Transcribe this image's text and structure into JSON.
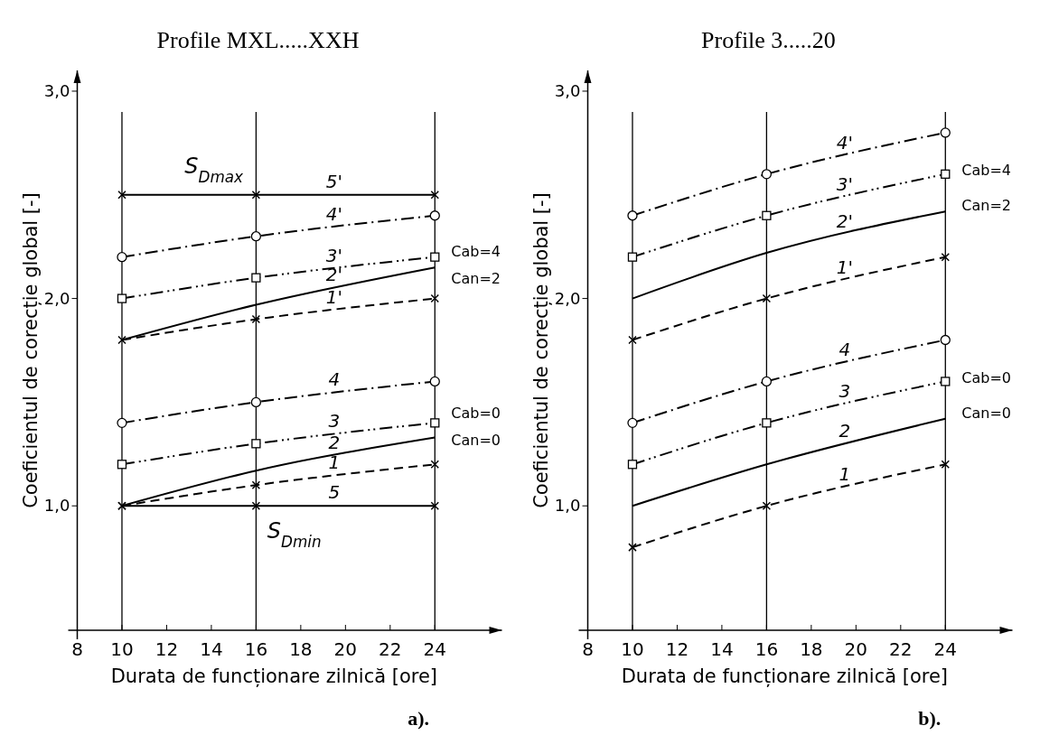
{
  "chart_data": [
    {
      "type": "line",
      "title": "Profile MXL.....XXH",
      "xlabel": "Durata de funcționare zilnică [ore]",
      "ylabel": "Coeficientul de corecție global [-]",
      "xlim": [
        8,
        27
      ],
      "xticks": [
        8,
        10,
        12,
        14,
        16,
        18,
        20,
        22,
        24
      ],
      "ylim": [
        0.4,
        3.1
      ],
      "yticks": [
        {
          "value": 1,
          "label": "1,0"
        },
        {
          "value": 2,
          "label": "2,0"
        },
        {
          "value": 3,
          "label": "3,0"
        }
      ],
      "grid": false,
      "ref_lines": [
        {
          "axis": "x",
          "value": 10,
          "label": null
        },
        {
          "axis": "x",
          "value": 16,
          "label": null
        },
        {
          "axis": "x",
          "value": 24,
          "label": null
        }
      ],
      "x": [
        10,
        16,
        24
      ],
      "series": [
        {
          "name": "5'",
          "color": "#000000",
          "values": [
            2.5,
            2.5,
            2.5
          ],
          "line_style": "solid",
          "marker": "cross"
        },
        {
          "name": "4'",
          "color": "#000000",
          "values": [
            2.2,
            2.3,
            2.4
          ],
          "line_style": "dashdot",
          "marker": "circle"
        },
        {
          "name": "3'",
          "color": "#000000",
          "values": [
            2.0,
            2.1,
            2.2
          ],
          "line_style": "dashdotdot",
          "marker": "square"
        },
        {
          "name": "2'",
          "color": "#000000",
          "values": [
            1.8,
            1.97,
            2.15
          ],
          "line_style": "solid",
          "marker": "none"
        },
        {
          "name": "1'",
          "color": "#000000",
          "values": [
            1.8,
            1.9,
            2.0
          ],
          "line_style": "dashed",
          "marker": "cross"
        },
        {
          "name": "4",
          "color": "#000000",
          "values": [
            1.4,
            1.5,
            1.6
          ],
          "line_style": "dashdot",
          "marker": "circle"
        },
        {
          "name": "3",
          "color": "#000000",
          "values": [
            1.2,
            1.3,
            1.4
          ],
          "line_style": "dashdotdot",
          "marker": "square"
        },
        {
          "name": "2",
          "color": "#000000",
          "values": [
            1.0,
            1.17,
            1.33
          ],
          "line_style": "solid",
          "marker": "none"
        },
        {
          "name": "1",
          "color": "#000000",
          "values": [
            1.0,
            1.1,
            1.2
          ],
          "line_style": "dashed",
          "marker": "cross"
        },
        {
          "name": "5",
          "color": "#000000",
          "values": [
            1.0,
            1.0,
            1.0
          ],
          "line_style": "solid",
          "marker": "cross"
        }
      ],
      "annotations": [
        {
          "text": "S$_{Dmax}$",
          "x": 12.8,
          "y": 2.5
        },
        {
          "text": "S$_{Dmin}$",
          "x": 16.5,
          "y": 1.0
        },
        {
          "text": "Cab=4",
          "x": 24,
          "y": 2.23
        },
        {
          "text": "Can=2",
          "x": 24,
          "y": 2.1
        },
        {
          "text": "Cab=0",
          "x": 24,
          "y": 1.45
        },
        {
          "text": "Can=0",
          "x": 24,
          "y": 1.32
        },
        "a)."
      ]
    },
    {
      "type": "line",
      "title": "Profile 3.....20",
      "xlabel": "Durata de funcționare zilnică [ore]",
      "ylabel": "Coeficientul de corecție global [-]",
      "xlim": [
        8,
        27
      ],
      "xticks": [
        8,
        10,
        12,
        14,
        16,
        18,
        20,
        22,
        24
      ],
      "ylim": [
        0.4,
        3.1
      ],
      "yticks": [
        {
          "value": 1,
          "label": "1,0"
        },
        {
          "value": 2,
          "label": "2,0"
        },
        {
          "value": 3,
          "label": "3,0"
        }
      ],
      "grid": false,
      "ref_lines": [
        {
          "axis": "x",
          "value": 10,
          "label": null
        },
        {
          "axis": "x",
          "value": 16,
          "label": null
        },
        {
          "axis": "x",
          "value": 24,
          "label": null
        }
      ],
      "x": [
        10,
        16,
        24
      ],
      "series": [
        {
          "name": "4'",
          "color": "#000000",
          "values": [
            2.4,
            2.6,
            2.8
          ],
          "line_style": "dashdot",
          "marker": "circle"
        },
        {
          "name": "3'",
          "color": "#000000",
          "values": [
            2.2,
            2.4,
            2.6
          ],
          "line_style": "dashdotdot",
          "marker": "square"
        },
        {
          "name": "2'",
          "color": "#000000",
          "values": [
            2.0,
            2.22,
            2.42
          ],
          "line_style": "solid",
          "marker": "none"
        },
        {
          "name": "1'",
          "color": "#000000",
          "values": [
            1.8,
            2.0,
            2.2
          ],
          "line_style": "dashed",
          "marker": "cross"
        },
        {
          "name": "4",
          "color": "#000000",
          "values": [
            1.4,
            1.6,
            1.8
          ],
          "line_style": "dashdot",
          "marker": "circle"
        },
        {
          "name": "3",
          "color": "#000000",
          "values": [
            1.2,
            1.4,
            1.6
          ],
          "line_style": "dashdotdot",
          "marker": "square"
        },
        {
          "name": "2",
          "color": "#000000",
          "values": [
            1.0,
            1.2,
            1.42
          ],
          "line_style": "solid",
          "marker": "none"
        },
        {
          "name": "1",
          "color": "#000000",
          "values": [
            0.8,
            1.0,
            1.2
          ],
          "line_style": "dashed",
          "marker": "cross"
        }
      ],
      "annotations": [
        {
          "text": "Cab=4",
          "x": 24,
          "y": 2.62
        },
        {
          "text": "Can=2",
          "x": 24,
          "y": 2.45
        },
        {
          "text": "Cab=0",
          "x": 24,
          "y": 1.62
        },
        {
          "text": "Can=0",
          "x": 24,
          "y": 1.45
        },
        "b)."
      ]
    }
  ]
}
